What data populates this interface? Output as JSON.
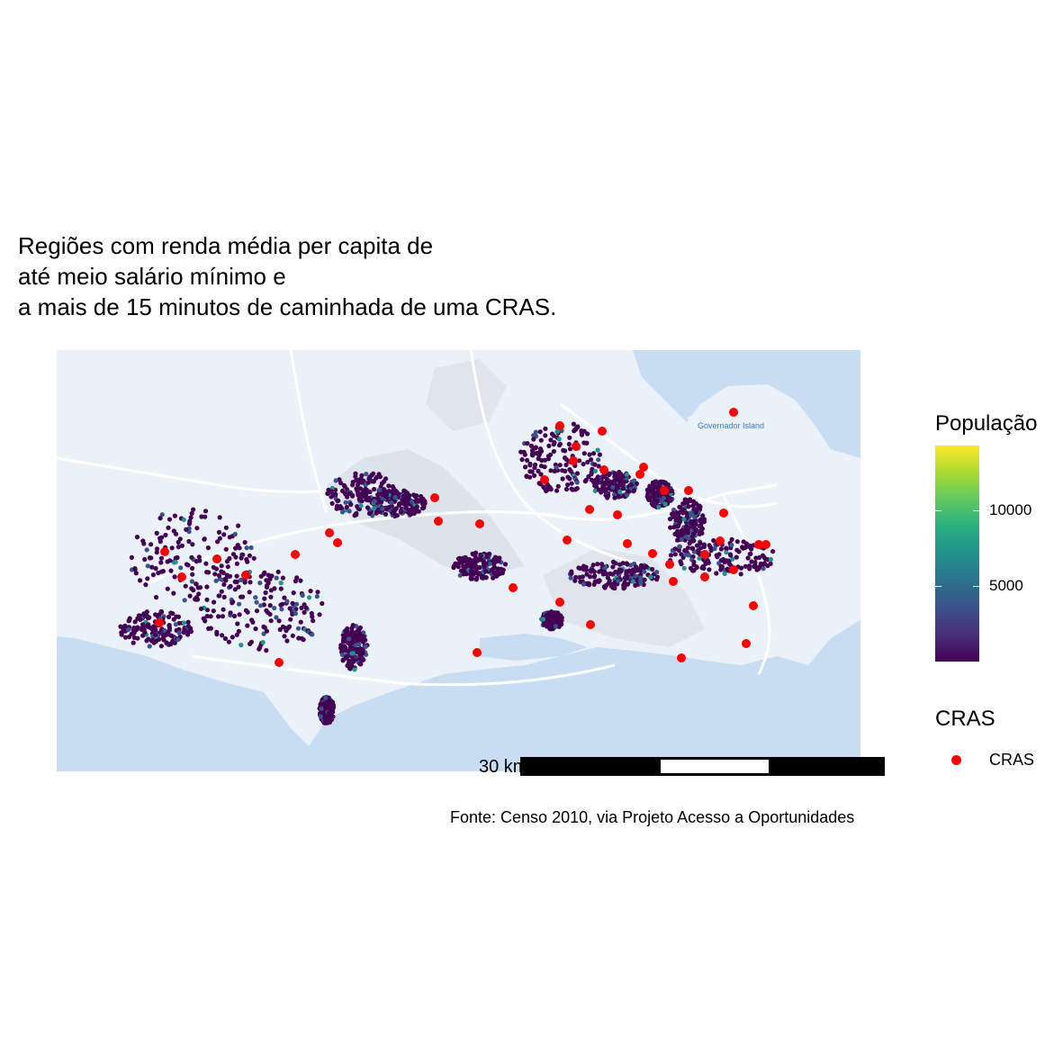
{
  "title": {
    "line1": "Regiões com renda média per capita de",
    "line2": "até meio salário mínimo e",
    "line3": "a mais de 15 minutos de caminhada de uma CRAS."
  },
  "map": {
    "basemap_label": "Governador Island",
    "colors": {
      "water": "#c8dcf2",
      "land": "#eaf1f8",
      "roads": "#ffffff",
      "hex_low": "#440154",
      "hex_mid": "#3b528b",
      "hex_high": "#21918c",
      "cras": "#ff0000"
    }
  },
  "scale_bar": {
    "label": "30 km"
  },
  "legend": {
    "population": {
      "title": "População",
      "ticks": [
        "10000",
        "5000"
      ],
      "colors": [
        "#440154",
        "#3b528b",
        "#21918c",
        "#5ec962",
        "#fde725"
      ]
    },
    "cras": {
      "title": "CRAS",
      "item_label": "CRAS",
      "color": "#ff0000"
    }
  },
  "source": "Fonte: Censo 2010, via Projeto Acesso a Oportunidades"
}
